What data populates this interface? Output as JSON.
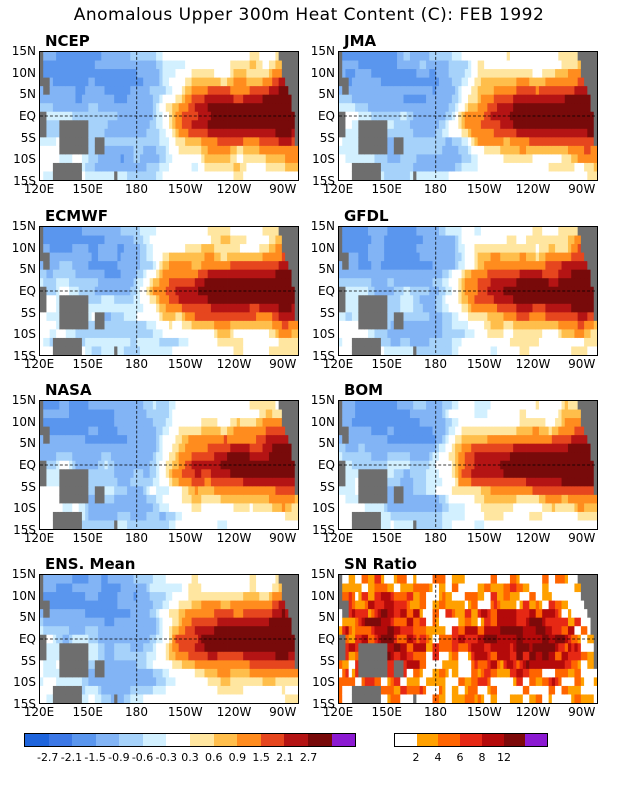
{
  "title": "Anomalous Upper 300m Heat Content (C): FEB 1992",
  "colors": {
    "anomaly_scale": [
      "#1e64dc",
      "#3c78e6",
      "#5a96ee",
      "#82b4f5",
      "#a6d2fa",
      "#d2f0ff",
      "#ffffff",
      "#ffe6a0",
      "#ffbe4b",
      "#ff8c1e",
      "#e6461e",
      "#b41414",
      "#780a0a",
      "#8c1ad2"
    ],
    "sn_scale": [
      "#ffffff",
      "#ffa000",
      "#ff6400",
      "#e62814",
      "#b40a0a",
      "#7d0a0a",
      "#8c1ad2"
    ],
    "land": "#6e6e6e"
  },
  "axes": {
    "lat_labels": [
      "15N",
      "10N",
      "5N",
      "EQ",
      "5S",
      "10S",
      "15S"
    ],
    "lon_labels": [
      "120E",
      "150E",
      "180",
      "150W",
      "120W",
      "90W"
    ]
  },
  "legends": {
    "anomaly_ticks": [
      "-2.7",
      "-2.1",
      "-1.5",
      "-0.9",
      "-0.6",
      "-0.3",
      "0.3",
      "0.6",
      "0.9",
      "1.5",
      "2.1",
      "2.7"
    ],
    "sn_ticks": [
      "2",
      "4",
      "6",
      "8",
      "12"
    ]
  },
  "chart_data": [
    {
      "type": "heatmap",
      "title": "NCEP",
      "month": "FEB 1992",
      "lat_range": [
        -15,
        15
      ],
      "lon_range": [
        120,
        280
      ],
      "features": {
        "warm_core_lon": 242,
        "warm_core_width": 18,
        "warm_west_extent": 200,
        "cold_west_band": [
          130,
          200
        ],
        "peak": 3.0
      }
    },
    {
      "type": "heatmap",
      "title": "JMA",
      "month": "FEB 1992",
      "lat_range": [
        -15,
        15
      ],
      "lon_range": [
        120,
        280
      ],
      "features": {
        "warm_core_lon": 240,
        "warm_core_width": 16,
        "warm_west_extent": 198,
        "cold_west_band": [
          130,
          200
        ],
        "peak": 2.9
      }
    },
    {
      "type": "heatmap",
      "title": "ECMWF",
      "month": "FEB 1992",
      "lat_range": [
        -15,
        15
      ],
      "lon_range": [
        120,
        280
      ],
      "features": {
        "warm_core_lon": 238,
        "warm_core_width": 18,
        "warm_west_extent": 190,
        "cold_west_band": [
          130,
          195
        ],
        "peak": 3.0
      }
    },
    {
      "type": "heatmap",
      "title": "GFDL",
      "month": "FEB 1992",
      "lat_range": [
        -15,
        15
      ],
      "lon_range": [
        120,
        280
      ],
      "features": {
        "warm_core_lon": 240,
        "warm_core_width": 20,
        "warm_west_extent": 195,
        "cold_west_band": [
          130,
          200
        ],
        "peak": 2.6
      }
    },
    {
      "type": "heatmap",
      "title": "NASA",
      "month": "FEB 1992",
      "lat_range": [
        -15,
        15
      ],
      "lon_range": [
        120,
        280
      ],
      "features": {
        "warm_core_lon": 242,
        "warm_core_width": 8,
        "warm_west_extent": 200,
        "cold_west_band": [
          125,
          200
        ],
        "peak": 2.8
      }
    },
    {
      "type": "heatmap",
      "title": "BOM",
      "month": "FEB 1992",
      "lat_range": [
        -15,
        15
      ],
      "lon_range": [
        120,
        280
      ],
      "features": {
        "warm_core_lon": 248,
        "warm_core_width": 30,
        "warm_west_extent": 190,
        "cold_west_band": [
          130,
          190
        ],
        "peak": 3.0
      }
    },
    {
      "type": "heatmap",
      "title": "ENS. Mean",
      "month": "FEB 1992",
      "lat_range": [
        -15,
        15
      ],
      "lon_range": [
        120,
        280
      ],
      "features": {
        "warm_core_lon": 242,
        "warm_core_width": 18,
        "warm_west_extent": 200,
        "cold_west_band": [
          130,
          200
        ],
        "peak": 2.9
      }
    },
    {
      "type": "heatmap",
      "title": "SN Ratio",
      "month": "FEB 1992",
      "lat_range": [
        -15,
        15
      ],
      "lon_range": [
        120,
        280
      ],
      "features": {
        "high_ratio_region_lon": [
          140,
          260
        ],
        "peak": 14
      }
    }
  ]
}
